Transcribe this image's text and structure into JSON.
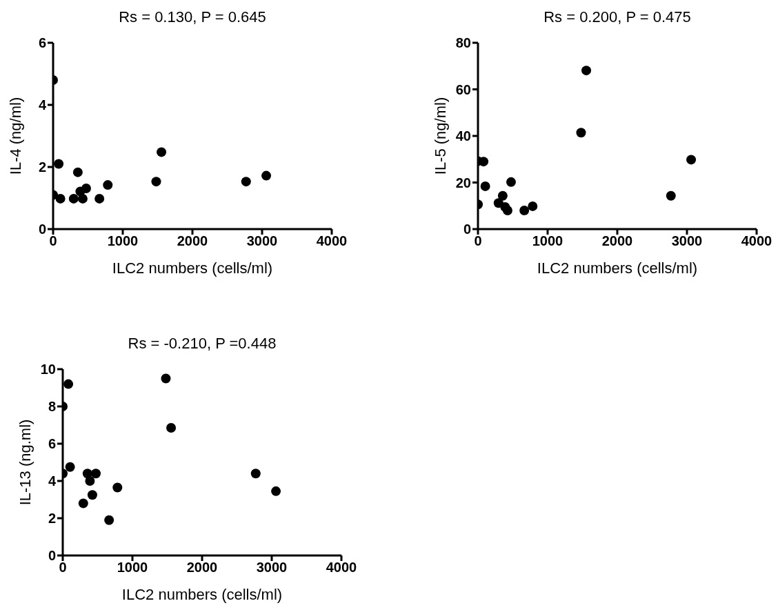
{
  "chart_data": [
    {
      "type": "scatter",
      "title": "Rs = 0.130, P = 0.645",
      "xlabel": "ILC2 numbers (cells/ml)",
      "ylabel": "IL-4 (ng/ml)",
      "x": [
        0,
        0,
        80,
        105,
        295,
        355,
        390,
        425,
        475,
        665,
        785,
        1480,
        1555,
        2770,
        3060
      ],
      "values": [
        4.8,
        1.1,
        2.1,
        0.98,
        0.98,
        1.83,
        1.21,
        0.98,
        1.31,
        0.98,
        1.42,
        1.53,
        2.48,
        1.53,
        1.72
      ],
      "color": "#000000",
      "marker": "circle",
      "xlim": [
        0,
        4000
      ],
      "xticks": [
        0,
        1000,
        2000,
        3000,
        4000
      ],
      "ylim": [
        0,
        6
      ],
      "yticks": [
        0,
        2,
        4,
        6
      ]
    },
    {
      "type": "scatter",
      "title": "Rs = 0.200, P = 0.475",
      "xlabel": "ILC2 numbers (cells/ml)",
      "ylabel": "IL-5 (ng/ml)",
      "x": [
        0,
        0,
        80,
        105,
        295,
        355,
        390,
        425,
        475,
        665,
        785,
        1480,
        1555,
        2770,
        3060
      ],
      "values": [
        29.2,
        10.6,
        29,
        18.4,
        11.2,
        14.3,
        9.5,
        8,
        20.2,
        8,
        9.8,
        41.4,
        68.1,
        14.3,
        29.8
      ],
      "color": "#000000",
      "marker": "circle",
      "xlim": [
        0,
        4000
      ],
      "xticks": [
        0,
        1000,
        2000,
        3000,
        4000
      ],
      "ylim": [
        0,
        80
      ],
      "yticks": [
        0,
        20,
        40,
        60,
        80
      ]
    },
    {
      "type": "scatter",
      "title": "Rs = -0.210, P =0.448",
      "xlabel": "ILC2 numbers (cells/ml)",
      "ylabel": "IL-13 (ng.ml)",
      "x": [
        0,
        0,
        80,
        105,
        295,
        355,
        390,
        425,
        475,
        665,
        785,
        1480,
        1555,
        2770,
        3060
      ],
      "values": [
        8.0,
        4.4,
        9.2,
        4.75,
        2.8,
        4.4,
        4.0,
        3.25,
        4.4,
        1.9,
        3.65,
        9.5,
        6.85,
        4.4,
        3.45
      ],
      "color": "#000000",
      "marker": "circle",
      "xlim": [
        0,
        4000
      ],
      "xticks": [
        0,
        1000,
        2000,
        3000,
        4000
      ],
      "ylim": [
        0,
        10
      ],
      "yticks": [
        0,
        2,
        4,
        6,
        8,
        10
      ]
    }
  ]
}
